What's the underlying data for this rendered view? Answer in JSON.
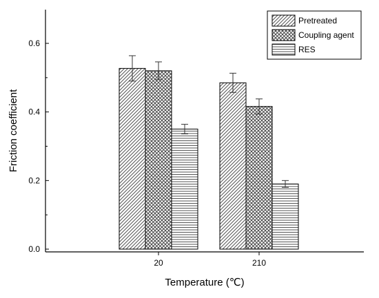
{
  "chart_data": {
    "type": "bar",
    "categories": [
      "20",
      "210"
    ],
    "series": [
      {
        "name": "Pretreated",
        "pattern": "diagonal-lines",
        "values": [
          0.527,
          0.485
        ],
        "errors": [
          0.037,
          0.028
        ]
      },
      {
        "name": "Coupling agent",
        "pattern": "crosshatch",
        "values": [
          0.52,
          0.416
        ],
        "errors": [
          0.026,
          0.022
        ]
      },
      {
        "name": "RES",
        "pattern": "horizontal-lines",
        "values": [
          0.35,
          0.19
        ],
        "errors": [
          0.014,
          0.01
        ]
      }
    ],
    "xlabel": "Temperature (℃)",
    "ylabel": "Friction coefficient",
    "ylim": [
      0.0,
      0.7
    ],
    "yticks": [
      "0.0",
      "0.2",
      "0.4",
      "0.6"
    ],
    "grid": false,
    "legend_position": "top-right",
    "error_bars": true,
    "colors": {
      "axis": "#000000",
      "fill": "#ffffff",
      "hatch": "#555555"
    }
  }
}
